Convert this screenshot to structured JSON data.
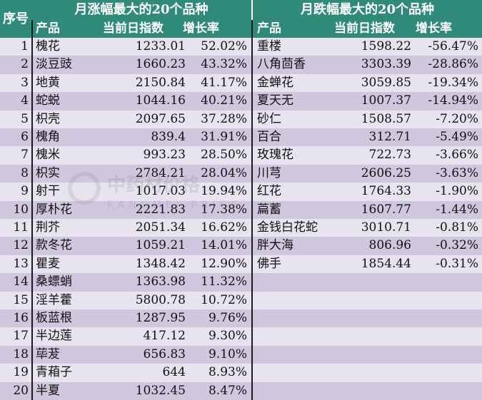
{
  "headers": {
    "seq": "序号",
    "left_title": "月涨幅最大的20个品种",
    "right_title": "月跌幅最大的20个品种",
    "col_product": "产品",
    "col_index": "当前日指数",
    "col_growth": "增长率"
  },
  "left_rows": [
    {
      "seq": "1",
      "product": "槐花",
      "index": "1233.01",
      "growth": "52.02%"
    },
    {
      "seq": "2",
      "product": "淡豆豉",
      "index": "1660.23",
      "growth": "43.32%"
    },
    {
      "seq": "3",
      "product": "地黄",
      "index": "2150.84",
      "growth": "41.17%"
    },
    {
      "seq": "4",
      "product": "蛇蜕",
      "index": "1044.16",
      "growth": "40.21%"
    },
    {
      "seq": "5",
      "product": "枳壳",
      "index": "2097.65",
      "growth": "37.28%"
    },
    {
      "seq": "6",
      "product": "槐角",
      "index": "839.4",
      "growth": "31.91%"
    },
    {
      "seq": "7",
      "product": "槐米",
      "index": "993.23",
      "growth": "28.50%"
    },
    {
      "seq": "8",
      "product": "枳实",
      "index": "2784.21",
      "growth": "28.04%"
    },
    {
      "seq": "9",
      "product": "射干",
      "index": "1017.03",
      "growth": "19.94%"
    },
    {
      "seq": "10",
      "product": "厚朴花",
      "index": "2221.83",
      "growth": "17.38%"
    },
    {
      "seq": "11",
      "product": "荆芥",
      "index": "2051.34",
      "growth": "16.62%"
    },
    {
      "seq": "12",
      "product": "款冬花",
      "index": "1059.21",
      "growth": "14.01%"
    },
    {
      "seq": "13",
      "product": "瞿麦",
      "index": "1348.42",
      "growth": "12.90%"
    },
    {
      "seq": "14",
      "product": "桑螵蛸",
      "index": "1363.98",
      "growth": "11.32%"
    },
    {
      "seq": "15",
      "product": "淫羊藿",
      "index": "5800.78",
      "growth": "10.72%"
    },
    {
      "seq": "16",
      "product": "板蓝根",
      "index": "1287.95",
      "growth": "9.76%"
    },
    {
      "seq": "17",
      "product": "半边莲",
      "index": "417.12",
      "growth": "9.30%"
    },
    {
      "seq": "18",
      "product": "荜茇",
      "index": "656.83",
      "growth": "9.10%"
    },
    {
      "seq": "19",
      "product": "青葙子",
      "index": "644",
      "growth": "8.93%"
    },
    {
      "seq": "20",
      "product": "半夏",
      "index": "1032.45",
      "growth": "8.47%"
    }
  ],
  "right_rows": [
    {
      "product": "重楼",
      "index": "1598.22",
      "growth": "-56.47%"
    },
    {
      "product": "八角茴香",
      "index": "3303.39",
      "growth": "-28.86%"
    },
    {
      "product": "金蝉花",
      "index": "3059.85",
      "growth": "-19.34%"
    },
    {
      "product": "夏天无",
      "index": "1007.37",
      "growth": "-14.94%"
    },
    {
      "product": "砂仁",
      "index": "1508.57",
      "growth": "-7.20%"
    },
    {
      "product": "百合",
      "index": "312.71",
      "growth": "-5.49%"
    },
    {
      "product": "玫瑰花",
      "index": "722.73",
      "growth": "-3.66%"
    },
    {
      "product": "川芎",
      "index": "2606.25",
      "growth": "-3.63%"
    },
    {
      "product": "红花",
      "index": "1764.33",
      "growth": "-1.90%"
    },
    {
      "product": "萹蓄",
      "index": "1607.77",
      "growth": "-1.44%"
    },
    {
      "product": "金钱白花蛇",
      "index": "3010.71",
      "growth": "-0.81%"
    },
    {
      "product": "胖大海",
      "index": "806.96",
      "growth": "-0.32%"
    },
    {
      "product": "佛手",
      "index": "1854.44",
      "growth": "-0.31%"
    },
    {
      "product": "",
      "index": "",
      "growth": ""
    },
    {
      "product": "",
      "index": "",
      "growth": ""
    },
    {
      "product": "",
      "index": "",
      "growth": ""
    },
    {
      "product": "",
      "index": "",
      "growth": ""
    },
    {
      "product": "",
      "index": "",
      "growth": ""
    },
    {
      "product": "",
      "index": "",
      "growth": ""
    },
    {
      "product": "",
      "index": "",
      "growth": ""
    }
  ],
  "colors": {
    "header": "#2f8a7a",
    "row_alt": "#cfc7dd",
    "row_plain": "#e8e4ef"
  },
  "watermark": {
    "text": "中药材价格",
    "subtext": "KANGMEI   PRICE"
  }
}
